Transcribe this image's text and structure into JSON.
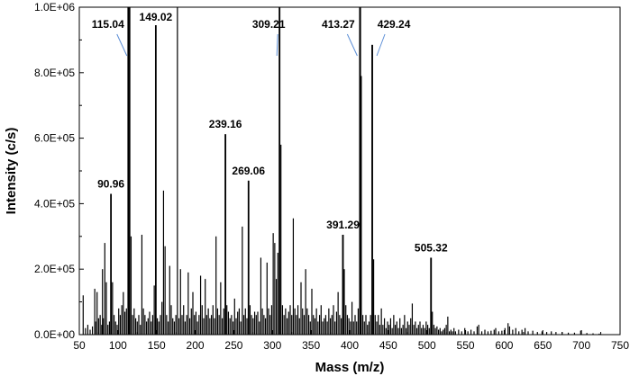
{
  "chart_data": {
    "type": "bar",
    "title": "",
    "xlabel": "Mass (m/z)",
    "ylabel": "Intensity (c/s)",
    "xlim": [
      50,
      750
    ],
    "ylim": [
      0,
      1000000
    ],
    "x_ticks": [
      50,
      100,
      150,
      200,
      250,
      300,
      350,
      400,
      450,
      500,
      550,
      600,
      650,
      700,
      750
    ],
    "x_tick_labels": [
      "50",
      "100",
      "150",
      "200",
      "250",
      "300",
      "350",
      "400",
      "450",
      "500",
      "550",
      "600",
      "650",
      "700",
      "750"
    ],
    "y_ticks": [
      0,
      200000,
      400000,
      600000,
      800000,
      1000000
    ],
    "y_tick_labels": [
      "0.0E+00",
      "2.0E+05",
      "4.0E+05",
      "6.0E+05",
      "8.0E+05",
      "1.0E+06"
    ],
    "grid": false,
    "legend": "none",
    "labeled_peaks": [
      {
        "label": "90.96",
        "x": 90.96,
        "y": 430000
      },
      {
        "label": "115.04",
        "x": 115.04,
        "y": 1000000,
        "leader_line": true
      },
      {
        "label": "149.02",
        "x": 149.02,
        "y": 945000
      },
      {
        "label": "239.16",
        "x": 239.16,
        "y": 612000
      },
      {
        "label": "269.06",
        "x": 269.06,
        "y": 470000
      },
      {
        "label": "309.21",
        "x": 309.21,
        "y": 1000000,
        "leader_line": true
      },
      {
        "label": "391.29",
        "x": 391.29,
        "y": 305000
      },
      {
        "label": "413.27",
        "x": 413.27,
        "y": 1000000,
        "leader_line": true
      },
      {
        "label": "429.24",
        "x": 429.24,
        "y": 885000,
        "leader_line": true
      },
      {
        "label": "505.32",
        "x": 505.32,
        "y": 235000
      }
    ],
    "peaks": [
      [
        55,
        120000
      ],
      [
        58,
        20000
      ],
      [
        61,
        30000
      ],
      [
        64,
        15000
      ],
      [
        67,
        25000
      ],
      [
        70,
        140000
      ],
      [
        71,
        40000
      ],
      [
        73,
        130000
      ],
      [
        75,
        50000
      ],
      [
        77,
        60000
      ],
      [
        79,
        30000
      ],
      [
        80,
        200000
      ],
      [
        81,
        50000
      ],
      [
        83,
        280000
      ],
      [
        85,
        160000
      ],
      [
        87,
        30000
      ],
      [
        89,
        40000
      ],
      [
        91,
        430000
      ],
      [
        93,
        160000
      ],
      [
        95,
        60000
      ],
      [
        97,
        40000
      ],
      [
        99,
        30000
      ],
      [
        101,
        80000
      ],
      [
        103,
        60000
      ],
      [
        105,
        90000
      ],
      [
        107,
        130000
      ],
      [
        109,
        70000
      ],
      [
        111,
        80000
      ],
      [
        113,
        1000000
      ],
      [
        114,
        1000000
      ],
      [
        115,
        1000000
      ],
      [
        117,
        300000
      ],
      [
        119,
        60000
      ],
      [
        121,
        80000
      ],
      [
        123,
        50000
      ],
      [
        125,
        40000
      ],
      [
        127,
        60000
      ],
      [
        129,
        30000
      ],
      [
        131,
        305000
      ],
      [
        133,
        80000
      ],
      [
        135,
        60000
      ],
      [
        137,
        40000
      ],
      [
        139,
        50000
      ],
      [
        141,
        70000
      ],
      [
        143,
        40000
      ],
      [
        145,
        60000
      ],
      [
        147,
        150000
      ],
      [
        149,
        945000
      ],
      [
        151,
        50000
      ],
      [
        153,
        40000
      ],
      [
        155,
        60000
      ],
      [
        157,
        100000
      ],
      [
        159,
        440000
      ],
      [
        161,
        270000
      ],
      [
        163,
        60000
      ],
      [
        165,
        40000
      ],
      [
        167,
        210000
      ],
      [
        169,
        90000
      ],
      [
        171,
        50000
      ],
      [
        173,
        40000
      ],
      [
        175,
        60000
      ],
      [
        177,
        1000000
      ],
      [
        179,
        50000
      ],
      [
        181,
        200000
      ],
      [
        183,
        60000
      ],
      [
        185,
        90000
      ],
      [
        187,
        40000
      ],
      [
        189,
        60000
      ],
      [
        191,
        190000
      ],
      [
        193,
        50000
      ],
      [
        195,
        80000
      ],
      [
        197,
        130000
      ],
      [
        199,
        60000
      ],
      [
        201,
        70000
      ],
      [
        203,
        40000
      ],
      [
        205,
        60000
      ],
      [
        207,
        180000
      ],
      [
        209,
        90000
      ],
      [
        211,
        50000
      ],
      [
        213,
        170000
      ],
      [
        215,
        60000
      ],
      [
        217,
        80000
      ],
      [
        219,
        50000
      ],
      [
        221,
        60000
      ],
      [
        223,
        90000
      ],
      [
        225,
        50000
      ],
      [
        227,
        300000
      ],
      [
        229,
        80000
      ],
      [
        231,
        60000
      ],
      [
        233,
        160000
      ],
      [
        235,
        50000
      ],
      [
        237,
        80000
      ],
      [
        239,
        612000
      ],
      [
        241,
        90000
      ],
      [
        243,
        70000
      ],
      [
        245,
        50000
      ],
      [
        247,
        60000
      ],
      [
        249,
        40000
      ],
      [
        251,
        110000
      ],
      [
        253,
        50000
      ],
      [
        255,
        70000
      ],
      [
        257,
        80000
      ],
      [
        259,
        40000
      ],
      [
        261,
        330000
      ],
      [
        263,
        60000
      ],
      [
        265,
        80000
      ],
      [
        267,
        50000
      ],
      [
        269,
        470000
      ],
      [
        271,
        90000
      ],
      [
        273,
        60000
      ],
      [
        275,
        50000
      ],
      [
        277,
        70000
      ],
      [
        279,
        60000
      ],
      [
        281,
        70000
      ],
      [
        283,
        40000
      ],
      [
        285,
        235000
      ],
      [
        287,
        80000
      ],
      [
        289,
        60000
      ],
      [
        291,
        50000
      ],
      [
        293,
        220000
      ],
      [
        295,
        80000
      ],
      [
        297,
        60000
      ],
      [
        299,
        90000
      ],
      [
        301,
        310000
      ],
      [
        303,
        280000
      ],
      [
        305,
        170000
      ],
      [
        307,
        250000
      ],
      [
        309,
        1000000
      ],
      [
        311,
        580000
      ],
      [
        313,
        90000
      ],
      [
        315,
        60000
      ],
      [
        317,
        80000
      ],
      [
        319,
        50000
      ],
      [
        321,
        70000
      ],
      [
        323,
        90000
      ],
      [
        325,
        60000
      ],
      [
        327,
        355000
      ],
      [
        329,
        80000
      ],
      [
        331,
        60000
      ],
      [
        333,
        90000
      ],
      [
        335,
        50000
      ],
      [
        337,
        160000
      ],
      [
        339,
        80000
      ],
      [
        341,
        60000
      ],
      [
        343,
        200000
      ],
      [
        345,
        80000
      ],
      [
        347,
        60000
      ],
      [
        349,
        40000
      ],
      [
        351,
        140000
      ],
      [
        353,
        60000
      ],
      [
        355,
        50000
      ],
      [
        357,
        80000
      ],
      [
        359,
        40000
      ],
      [
        361,
        60000
      ],
      [
        363,
        90000
      ],
      [
        365,
        40000
      ],
      [
        367,
        50000
      ],
      [
        369,
        60000
      ],
      [
        371,
        40000
      ],
      [
        373,
        80000
      ],
      [
        375,
        50000
      ],
      [
        377,
        60000
      ],
      [
        379,
        90000
      ],
      [
        381,
        40000
      ],
      [
        383,
        70000
      ],
      [
        385,
        130000
      ],
      [
        387,
        60000
      ],
      [
        389,
        50000
      ],
      [
        391,
        305000
      ],
      [
        393,
        200000
      ],
      [
        395,
        90000
      ],
      [
        397,
        60000
      ],
      [
        399,
        50000
      ],
      [
        401,
        40000
      ],
      [
        403,
        100000
      ],
      [
        405,
        40000
      ],
      [
        407,
        60000
      ],
      [
        409,
        40000
      ],
      [
        411,
        80000
      ],
      [
        413,
        1000000
      ],
      [
        414,
        1000000
      ],
      [
        415,
        790000
      ],
      [
        417,
        60000
      ],
      [
        419,
        40000
      ],
      [
        421,
        60000
      ],
      [
        423,
        30000
      ],
      [
        425,
        40000
      ],
      [
        427,
        60000
      ],
      [
        429,
        885000
      ],
      [
        431,
        230000
      ],
      [
        433,
        60000
      ],
      [
        435,
        40000
      ],
      [
        437,
        60000
      ],
      [
        439,
        30000
      ],
      [
        441,
        80000
      ],
      [
        443,
        30000
      ],
      [
        445,
        50000
      ],
      [
        447,
        20000
      ],
      [
        449,
        40000
      ],
      [
        451,
        30000
      ],
      [
        453,
        50000
      ],
      [
        455,
        20000
      ],
      [
        457,
        60000
      ],
      [
        459,
        30000
      ],
      [
        461,
        40000
      ],
      [
        463,
        20000
      ],
      [
        465,
        50000
      ],
      [
        467,
        20000
      ],
      [
        469,
        30000
      ],
      [
        471,
        60000
      ],
      [
        473,
        20000
      ],
      [
        475,
        40000
      ],
      [
        477,
        30000
      ],
      [
        479,
        50000
      ],
      [
        481,
        95000
      ],
      [
        483,
        30000
      ],
      [
        485,
        40000
      ],
      [
        487,
        20000
      ],
      [
        489,
        30000
      ],
      [
        491,
        40000
      ],
      [
        493,
        20000
      ],
      [
        495,
        30000
      ],
      [
        497,
        20000
      ],
      [
        499,
        40000
      ],
      [
        501,
        30000
      ],
      [
        503,
        20000
      ],
      [
        505,
        235000
      ],
      [
        507,
        70000
      ],
      [
        509,
        30000
      ],
      [
        511,
        20000
      ],
      [
        513,
        25000
      ],
      [
        515,
        15000
      ],
      [
        517,
        20000
      ],
      [
        519,
        10000
      ],
      [
        521,
        15000
      ],
      [
        523,
        20000
      ],
      [
        525,
        30000
      ],
      [
        527,
        55000
      ],
      [
        529,
        10000
      ],
      [
        531,
        15000
      ],
      [
        533,
        10000
      ],
      [
        535,
        20000
      ],
      [
        537,
        10000
      ],
      [
        541,
        15000
      ],
      [
        545,
        10000
      ],
      [
        549,
        20000
      ],
      [
        553,
        10000
      ],
      [
        557,
        15000
      ],
      [
        561,
        10000
      ],
      [
        565,
        25000
      ],
      [
        567,
        30000
      ],
      [
        571,
        10000
      ],
      [
        575,
        15000
      ],
      [
        579,
        10000
      ],
      [
        583,
        12000
      ],
      [
        587,
        15000
      ],
      [
        589,
        20000
      ],
      [
        593,
        10000
      ],
      [
        597,
        12000
      ],
      [
        601,
        20000
      ],
      [
        605,
        35000
      ],
      [
        607,
        25000
      ],
      [
        611,
        15000
      ],
      [
        615,
        20000
      ],
      [
        619,
        10000
      ],
      [
        623,
        15000
      ],
      [
        627,
        20000
      ],
      [
        631,
        10000
      ],
      [
        637,
        12000
      ],
      [
        643,
        8000
      ],
      [
        649,
        10000
      ],
      [
        655,
        8000
      ],
      [
        661,
        10000
      ],
      [
        667,
        8000
      ],
      [
        675,
        8000
      ],
      [
        683,
        6000
      ],
      [
        691,
        6000
      ],
      [
        699,
        12000
      ],
      [
        707,
        5000
      ],
      [
        715,
        4000
      ],
      [
        723,
        3000
      ]
    ]
  },
  "colors": {
    "bars": "#000000",
    "leader_line": "#5b8ed6",
    "axis": "#000000"
  }
}
